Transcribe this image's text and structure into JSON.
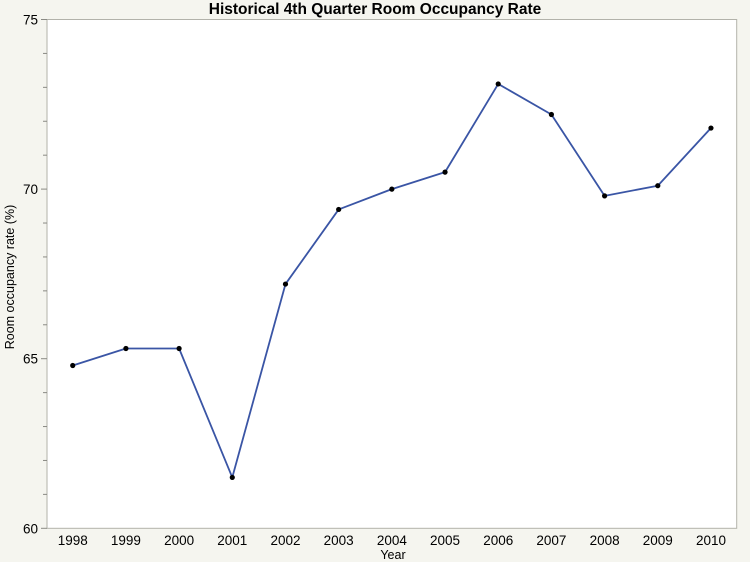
{
  "page": {
    "background_color": "#f5f5ef",
    "plot_background_color": "#ffffff",
    "frame_color": "#b2b2aa",
    "tick_color": "#8a8a84",
    "text_color": "#000000"
  },
  "chart_data": {
    "type": "line",
    "title": "Historical 4th Quarter Room Occupancy Rate",
    "xlabel": "Year",
    "ylabel": "Room occupancy rate (%)",
    "categories": [
      "1998",
      "1999",
      "2000",
      "2001",
      "2002",
      "2003",
      "2004",
      "2005",
      "2006",
      "2007",
      "2008",
      "2009",
      "2010"
    ],
    "values": [
      64.8,
      65.3,
      65.3,
      61.5,
      67.2,
      69.4,
      70.0,
      70.5,
      73.1,
      72.2,
      69.8,
      70.1,
      71.8
    ],
    "ylim": [
      60,
      75
    ],
    "y_major_ticks": [
      60,
      65,
      70,
      75
    ],
    "y_minor_tick_step": 1,
    "grid": false,
    "legend": false,
    "line_color": "#3a55a5",
    "marker_color": "#000000"
  }
}
